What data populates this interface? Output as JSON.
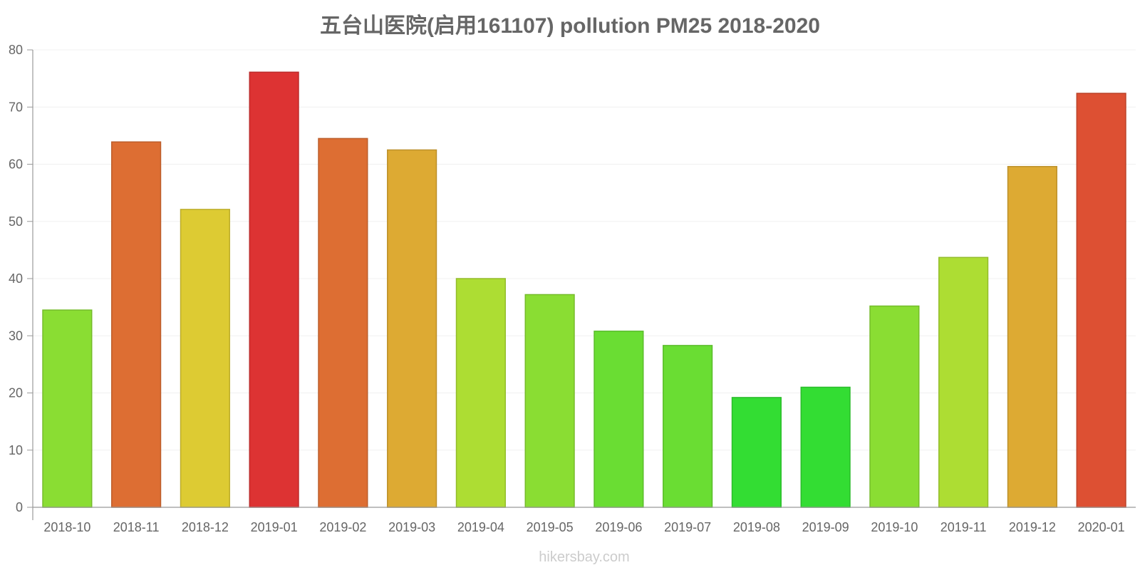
{
  "chart_data": {
    "type": "bar",
    "title": "五台山医院(启用161107) pollution PM25 2018-2020",
    "xlabel": "",
    "ylabel": "",
    "ylim": [
      0,
      80
    ],
    "yticks": [
      "0",
      "10",
      "20",
      "30",
      "40",
      "50",
      "60",
      "70",
      "80"
    ],
    "categories": [
      "2018-10",
      "2018-11",
      "2018-12",
      "2019-01",
      "2019-02",
      "2019-03",
      "2019-04",
      "2019-05",
      "2019-06",
      "2019-07",
      "2019-08",
      "2019-09",
      "2019-10",
      "2019-11",
      "2019-12",
      "2020-01"
    ],
    "values": [
      34.5,
      63.9,
      52.1,
      76.1,
      64.5,
      62.5,
      40.0,
      37.2,
      30.8,
      28.3,
      19.2,
      21.0,
      35.2,
      43.7,
      59.6,
      72.4
    ],
    "colors": [
      "#8add33",
      "#dd6e33",
      "#ddcb33",
      "#dd3333",
      "#dd6e33",
      "#ddaa33",
      "#addd33",
      "#8add33",
      "#6add33",
      "#6add33",
      "#33dd33",
      "#33dd33",
      "#8add33",
      "#addd33",
      "#ddaa33",
      "#dd5033"
    ],
    "grid": true,
    "legend": "none"
  },
  "watermark": "hikersbay.com"
}
